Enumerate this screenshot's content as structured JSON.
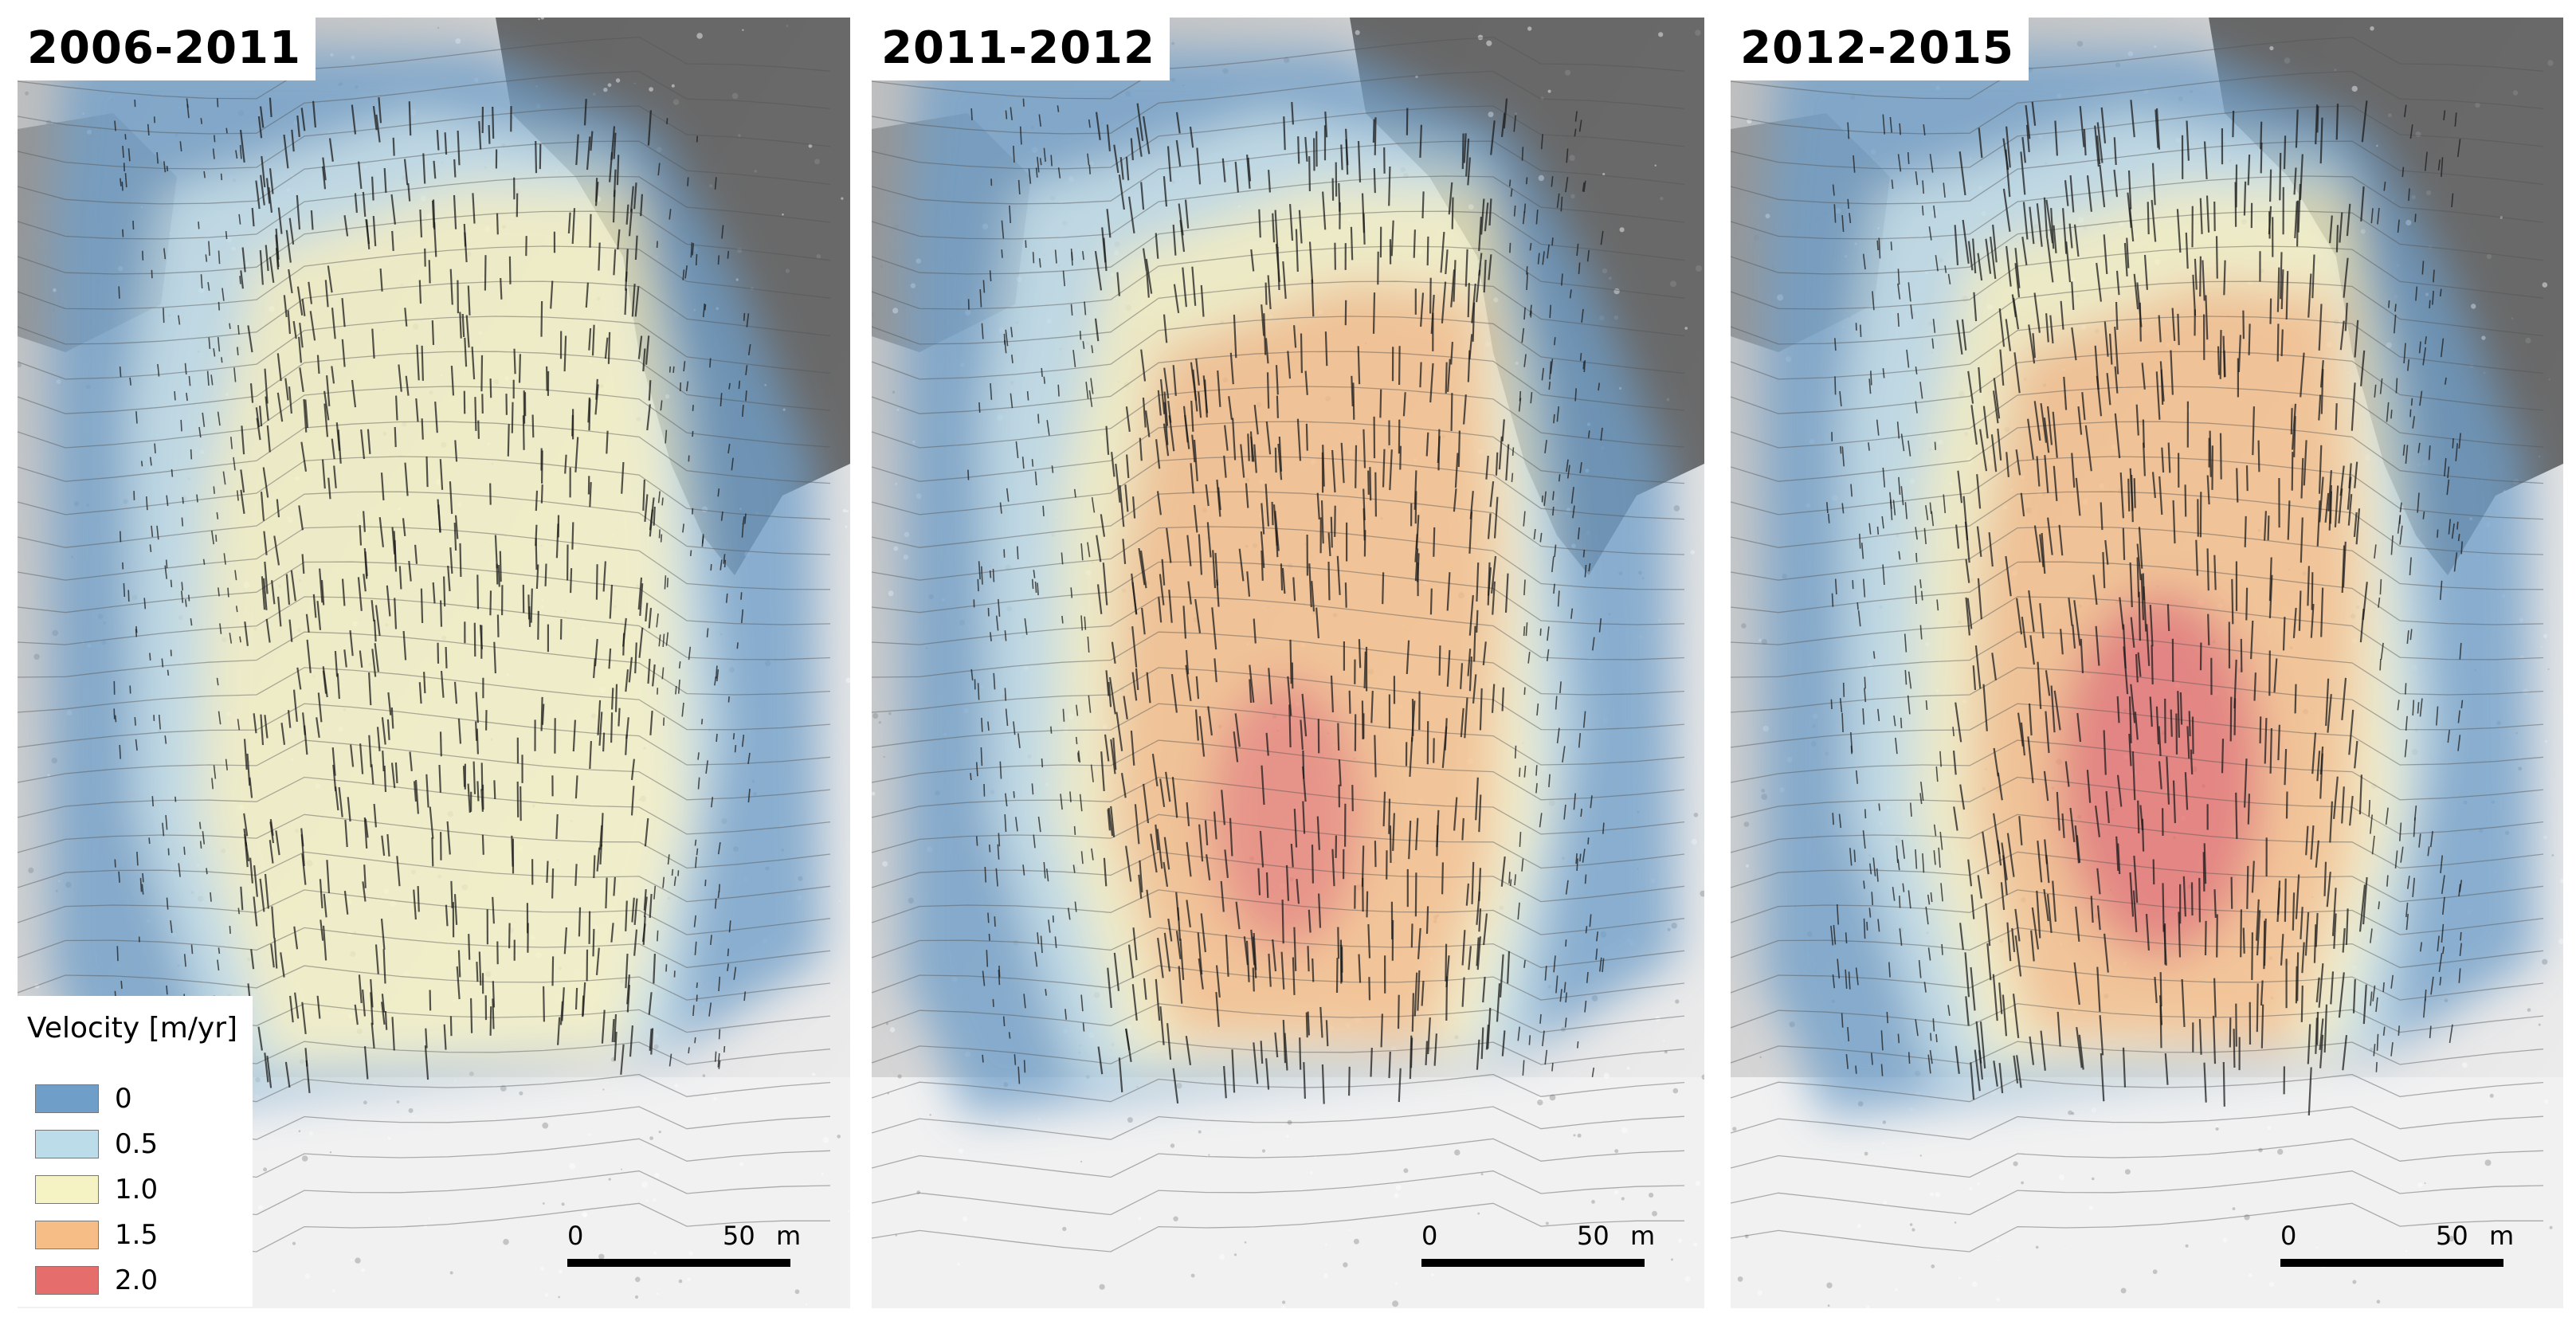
{
  "figure": {
    "panels": [
      {
        "title": "2006-2011",
        "intensity": 0.35
      },
      {
        "title": "2011-2012",
        "intensity": 0.75
      },
      {
        "title": "2012-2015",
        "intensity": 1.0
      }
    ],
    "scalebar": {
      "zero": "0",
      "length": "50",
      "unit": "m"
    },
    "legend": {
      "title": "Velocity [m/yr]",
      "items": [
        {
          "label": "0",
          "color": "#6f9fc9"
        },
        {
          "label": "0.5",
          "color": "#bcdcea"
        },
        {
          "label": "1.0",
          "color": "#f5f2c4"
        },
        {
          "label": "1.5",
          "color": "#f7bd86"
        },
        {
          "label": "2.0",
          "color": "#e56e6c"
        }
      ]
    }
  }
}
